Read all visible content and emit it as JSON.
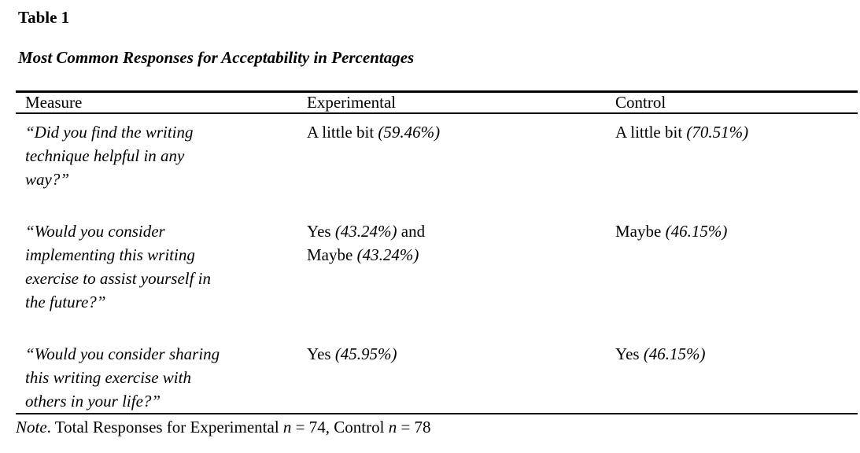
{
  "page": {
    "label": "Table 1",
    "title": "Most Common Responses for Acceptability in Percentages"
  },
  "table": {
    "columns": [
      "Measure",
      "Experimental",
      "Control"
    ],
    "rows": [
      {
        "measure": [
          {
            "t": "“Did you find the writing",
            "i": true,
            "br": true
          },
          {
            "t": "technique helpful in any",
            "i": true,
            "br": true
          },
          {
            "t": "way?”",
            "i": true
          }
        ],
        "experimental": [
          {
            "t": "A little bit ",
            "i": false
          },
          {
            "t": "(59.46%)",
            "i": true
          }
        ],
        "control": [
          {
            "t": "A little bit ",
            "i": false
          },
          {
            "t": "(70.51%)",
            "i": true
          }
        ]
      },
      {
        "measure": [
          {
            "t": "“Would you consider",
            "i": true,
            "br": true
          },
          {
            "t": "implementing this writing",
            "i": true,
            "br": true
          },
          {
            "t": "exercise to assist yourself in",
            "i": true,
            "br": true
          },
          {
            "t": "the future?”",
            "i": true
          }
        ],
        "experimental": [
          {
            "t": "Yes ",
            "i": false
          },
          {
            "t": "(43.24%)",
            "i": true
          },
          {
            "t": " and",
            "i": false,
            "br": true
          },
          {
            "t": "Maybe ",
            "i": false
          },
          {
            "t": "(43.24%)",
            "i": true
          }
        ],
        "control": [
          {
            "t": "Maybe ",
            "i": false
          },
          {
            "t": "(46.15%)",
            "i": true
          }
        ]
      },
      {
        "measure": [
          {
            "t": "“Would you consider sharing",
            "i": true,
            "br": true
          },
          {
            "t": "this writing exercise with",
            "i": true,
            "br": true
          },
          {
            "t": "others in your life?”",
            "i": true
          }
        ],
        "experimental": [
          {
            "t": "Yes ",
            "i": false
          },
          {
            "t": "(45.95%)",
            "i": true
          }
        ],
        "control": [
          {
            "t": "Yes ",
            "i": false
          },
          {
            "t": "(46.15%)",
            "i": true
          }
        ]
      }
    ],
    "note": [
      {
        "t": "Note",
        "i": true
      },
      {
        "t": ". Total Responses for Experimental ",
        "i": false
      },
      {
        "t": "n",
        "i": true
      },
      {
        "t": " = 74, Control ",
        "i": false
      },
      {
        "t": "n",
        "i": true
      },
      {
        "t": " = 78",
        "i": false
      }
    ],
    "stats": {
      "experimental_n": 74,
      "control_n": 78
    }
  }
}
